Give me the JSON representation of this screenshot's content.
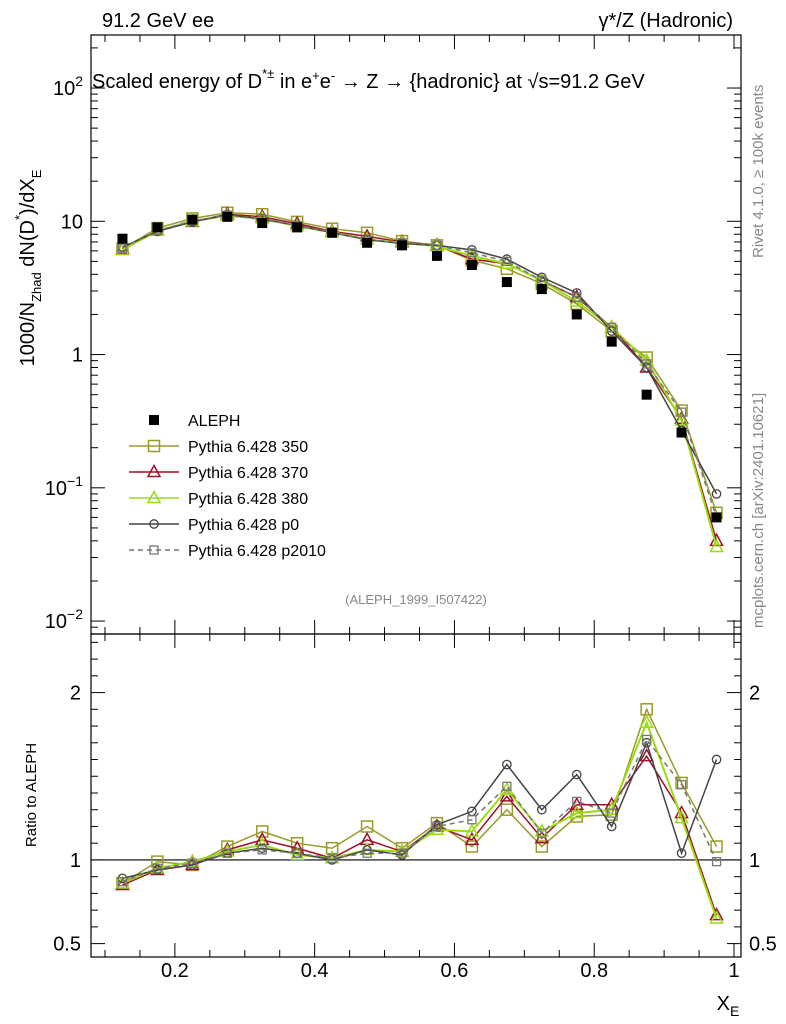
{
  "header": {
    "left": "91.2 GeV ee",
    "right": "γ*/Z (Hadronic)"
  },
  "side_labels": {
    "rivet": "Rivet 4.1.0, ≥ 100k events",
    "mcplots": "mcplots.cern.ch [arXiv:2401.10621]"
  },
  "chart_data": [
    {
      "type": "line",
      "panel": "main",
      "title": "Scaled energy of D*± in e+e- → Z → {hadronic} at √s=91.2 GeV",
      "title_parts": {
        "a": "Scaled energy of D",
        "b": "*±",
        "c": " in e",
        "d": "+",
        "e": "e",
        "f": "-",
        "g": " →  Z → {hadronic} at √s=91.2 GeV"
      },
      "ylabel": "1000/N_Zhad dN(D*)/dX_E",
      "ylabel_parts": {
        "a": "1000/N",
        "b": "Zhad",
        "c": " dN(D",
        "d": "*",
        "e": ")/dX",
        "f": "E"
      },
      "xlabel": "X_E",
      "xlim": [
        0.08,
        1.01
      ],
      "ylim": [
        0.008,
        250
      ],
      "yscale": "log",
      "yticks": [
        {
          "v": 0.01,
          "base": "10",
          "exp": "−2"
        },
        {
          "v": 0.1,
          "base": "10",
          "exp": "−1"
        },
        {
          "v": 1,
          "base": "1",
          "exp": ""
        },
        {
          "v": 10,
          "base": "10",
          "exp": ""
        },
        {
          "v": 100,
          "base": "10",
          "exp": "2"
        }
      ],
      "watermark": "(ALEPH_1999_I507422)",
      "x": [
        0.125,
        0.175,
        0.225,
        0.275,
        0.325,
        0.375,
        0.425,
        0.475,
        0.525,
        0.575,
        0.625,
        0.675,
        0.725,
        0.775,
        0.825,
        0.875,
        0.925,
        0.975
      ],
      "series": [
        {
          "name": "ALEPH",
          "marker": "filled-square",
          "color": "#000000",
          "values": [
            7.4,
            9.0,
            10.3,
            10.8,
            9.7,
            9.0,
            8.2,
            6.9,
            6.6,
            5.5,
            4.7,
            3.5,
            3.1,
            2.0,
            1.25,
            0.5,
            0.26,
            0.06
          ]
        },
        {
          "name": "Pythia 6.428 350",
          "marker": "open-square",
          "color": "#9a9a2a",
          "dash": false,
          "values": [
            6.2,
            8.9,
            10.5,
            11.6,
            11.3,
            9.9,
            8.8,
            8.2,
            7.1,
            6.6,
            5.1,
            4.4,
            3.4,
            2.4,
            1.5,
            0.95,
            0.38,
            0.065
          ]
        },
        {
          "name": "Pythia 6.428 370",
          "marker": "open-triangle",
          "color": "#a0102a",
          "dash": false,
          "values": [
            6.2,
            8.5,
            9.9,
            11.3,
            10.8,
            9.6,
            8.4,
            7.7,
            7.0,
            6.6,
            5.2,
            4.8,
            3.6,
            2.7,
            1.6,
            0.8,
            0.33,
            0.04
          ]
        },
        {
          "name": "Pythia 6.428 380",
          "marker": "open-triangle",
          "color": "#99dd11",
          "dash": false,
          "values": [
            6.1,
            8.5,
            10.0,
            11.0,
            10.5,
            9.2,
            8.3,
            7.3,
            6.9,
            6.5,
            5.5,
            4.8,
            3.6,
            2.5,
            1.6,
            0.9,
            0.32,
            0.036
          ]
        },
        {
          "name": "Pythia 6.428 p0",
          "marker": "open-circle",
          "color": "#444444",
          "dash": false,
          "values": [
            6.4,
            8.4,
            9.9,
            11.2,
            10.4,
            9.3,
            8.2,
            7.3,
            6.8,
            6.6,
            6.1,
            5.2,
            3.8,
            2.9,
            1.5,
            0.8,
            0.27,
            0.09
          ]
        },
        {
          "name": "Pythia 6.428 p2010",
          "marker": "open-square-small",
          "color": "#777777",
          "dash": true,
          "values": [
            6.3,
            8.5,
            10.1,
            11.1,
            10.3,
            9.3,
            8.3,
            7.2,
            6.9,
            6.6,
            5.8,
            5.0,
            3.6,
            2.7,
            1.6,
            0.85,
            0.37,
            0.06
          ]
        }
      ]
    },
    {
      "type": "line",
      "panel": "ratio",
      "ylabel": "Ratio to ALEPH",
      "xlim": [
        0.08,
        1.01
      ],
      "ylim": [
        0.42,
        2.35
      ],
      "yticks": [
        0.5,
        1,
        2
      ],
      "reference_line": 1,
      "xticks": [
        "0.2",
        "0.4",
        "0.6",
        "0.8",
        "1"
      ],
      "x": [
        0.125,
        0.175,
        0.225,
        0.275,
        0.325,
        0.375,
        0.425,
        0.475,
        0.525,
        0.575,
        0.625,
        0.675,
        0.725,
        0.775,
        0.825,
        0.875,
        0.925,
        0.975
      ],
      "series": [
        {
          "name": "Pythia 6.428 350",
          "values": [
            0.86,
            0.99,
            0.97,
            1.08,
            1.17,
            1.1,
            1.07,
            1.2,
            1.07,
            1.22,
            1.08,
            1.3,
            1.08,
            1.26,
            1.27,
            1.9,
            1.46,
            1.08
          ]
        },
        {
          "name": "Pythia 6.428 370",
          "values": [
            0.85,
            0.94,
            0.97,
            1.06,
            1.12,
            1.07,
            1.01,
            1.12,
            1.05,
            1.2,
            1.12,
            1.38,
            1.13,
            1.33,
            1.33,
            1.62,
            1.28,
            0.67
          ]
        },
        {
          "name": "Pythia 6.428 380",
          "values": [
            0.86,
            0.95,
            0.99,
            1.05,
            1.09,
            1.03,
            1.01,
            1.06,
            1.05,
            1.18,
            1.17,
            1.42,
            1.17,
            1.28,
            1.3,
            1.82,
            1.25,
            0.65
          ]
        },
        {
          "name": "Pythia 6.428 p0",
          "values": [
            0.89,
            0.94,
            0.97,
            1.04,
            1.07,
            1.04,
            1.0,
            1.06,
            1.03,
            1.21,
            1.29,
            1.57,
            1.3,
            1.51,
            1.2,
            1.7,
            1.04,
            1.6
          ]
        },
        {
          "name": "Pythia 6.428 p2010",
          "values": [
            0.87,
            0.95,
            0.98,
            1.04,
            1.06,
            1.04,
            1.01,
            1.04,
            1.04,
            1.2,
            1.24,
            1.44,
            1.16,
            1.35,
            1.28,
            1.72,
            1.45,
            0.99
          ]
        }
      ]
    }
  ]
}
